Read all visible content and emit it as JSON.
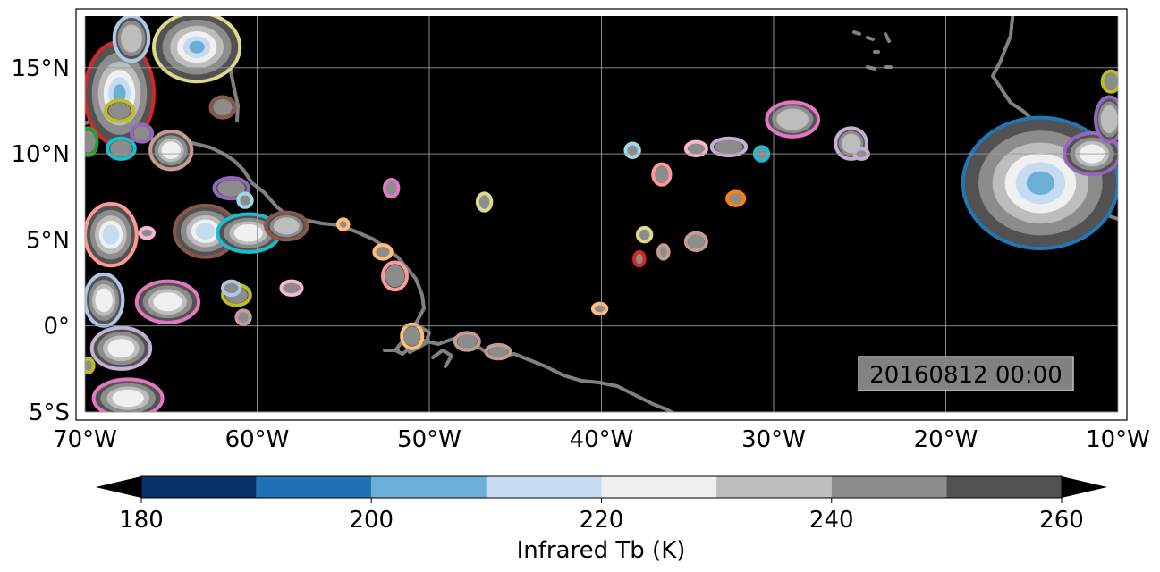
{
  "map": {
    "lon_range": [
      -70,
      -10
    ],
    "lat_range": [
      -5,
      18
    ],
    "lon_ticks": [
      {
        "lon": -70,
        "label": "70°W"
      },
      {
        "lon": -60,
        "label": "60°W"
      },
      {
        "lon": -50,
        "label": "50°W"
      },
      {
        "lon": -40,
        "label": "40°W"
      },
      {
        "lon": -30,
        "label": "30°W"
      },
      {
        "lon": -20,
        "label": "20°W"
      },
      {
        "lon": -10,
        "label": "10°W"
      }
    ],
    "lat_ticks": [
      {
        "lat": 15,
        "label": "15°N"
      },
      {
        "lat": 10,
        "label": "10°N"
      },
      {
        "lat": 5,
        "label": "5°N"
      },
      {
        "lat": 0,
        "label": "0°"
      },
      {
        "lat": -5,
        "label": "5°S"
      }
    ],
    "timestamp": "20160812 00:00",
    "background_color": "#000000",
    "coastline_color": "#808080",
    "grid": true
  },
  "colorbar": {
    "label": "Infrared Tb (K)",
    "ticks": [
      "180",
      "200",
      "220",
      "240",
      "260"
    ],
    "bins": [
      180,
      190,
      200,
      210,
      220,
      230,
      240,
      250,
      260
    ],
    "colors": [
      "#08306b",
      "#2171b5",
      "#6baed6",
      "#c6dbef",
      "#f0f0f0",
      "#bdbdbd",
      "#8c8c8c",
      "#525252"
    ],
    "extend": "both"
  },
  "storms": [
    {
      "lon": -68,
      "lat": 13.5,
      "rx": 2.0,
      "ry": 3.0,
      "edge": "#d62728"
    },
    {
      "lon": -63.5,
      "lat": 16.2,
      "rx": 2.5,
      "ry": 2.0,
      "edge": "#dbdb8d"
    },
    {
      "lon": -67.3,
      "lat": 16.7,
      "rx": 1.0,
      "ry": 1.3,
      "edge": "#aec7e8"
    },
    {
      "lon": -68.0,
      "lat": 12.5,
      "rx": 0.8,
      "ry": 0.6,
      "edge": "#bcbd22"
    },
    {
      "lon": -66.7,
      "lat": 11.2,
      "rx": 0.6,
      "ry": 0.5,
      "edge": "#9467bd"
    },
    {
      "lon": -62.0,
      "lat": 12.7,
      "rx": 0.7,
      "ry": 0.6,
      "edge": "#8c564b"
    },
    {
      "lon": -69.8,
      "lat": 10.7,
      "rx": 0.5,
      "ry": 0.8,
      "edge": "#2ca02c"
    },
    {
      "lon": -67.9,
      "lat": 10.3,
      "rx": 0.8,
      "ry": 0.6,
      "edge": "#17becf"
    },
    {
      "lon": -65.0,
      "lat": 10.2,
      "rx": 1.2,
      "ry": 1.1,
      "edge": "#c49c94"
    },
    {
      "lon": -61.5,
      "lat": 8.0,
      "rx": 1.0,
      "ry": 0.6,
      "edge": "#9467bd"
    },
    {
      "lon": -60.7,
      "lat": 7.3,
      "rx": 0.4,
      "ry": 0.4,
      "edge": "#9edae5"
    },
    {
      "lon": -68.5,
      "lat": 5.3,
      "rx": 1.5,
      "ry": 1.8,
      "edge": "#ff9896"
    },
    {
      "lon": -66.4,
      "lat": 5.4,
      "rx": 0.4,
      "ry": 0.3,
      "edge": "#f7b6d2"
    },
    {
      "lon": -63.0,
      "lat": 5.5,
      "rx": 1.8,
      "ry": 1.5,
      "edge": "#8c564b"
    },
    {
      "lon": -60.5,
      "lat": 5.4,
      "rx": 1.8,
      "ry": 1.1,
      "edge": "#17becf"
    },
    {
      "lon": -58.3,
      "lat": 5.8,
      "rx": 1.2,
      "ry": 0.8,
      "edge": "#8c564b"
    },
    {
      "lon": -68.9,
      "lat": 1.5,
      "rx": 1.1,
      "ry": 1.5,
      "edge": "#aec7e8"
    },
    {
      "lon": -65.2,
      "lat": 1.4,
      "rx": 1.8,
      "ry": 1.2,
      "edge": "#e377c2"
    },
    {
      "lon": -61.2,
      "lat": 1.8,
      "rx": 0.8,
      "ry": 0.6,
      "edge": "#bcbd22"
    },
    {
      "lon": -61.5,
      "lat": 2.2,
      "rx": 0.5,
      "ry": 0.4,
      "edge": "#aec7e8"
    },
    {
      "lon": -58.0,
      "lat": 2.2,
      "rx": 0.6,
      "ry": 0.4,
      "edge": "#f7b6d2"
    },
    {
      "lon": -60.8,
      "lat": 0.5,
      "rx": 0.4,
      "ry": 0.4,
      "edge": "#c49c94"
    },
    {
      "lon": -67.9,
      "lat": -1.3,
      "rx": 1.7,
      "ry": 1.2,
      "edge": "#c5b0d5"
    },
    {
      "lon": -67.5,
      "lat": -4.2,
      "rx": 2.0,
      "ry": 1.1,
      "edge": "#e377c2"
    },
    {
      "lon": -69.8,
      "lat": -2.3,
      "rx": 0.3,
      "ry": 0.4,
      "edge": "#bcbd22"
    },
    {
      "lon": -55.0,
      "lat": 5.9,
      "rx": 0.3,
      "ry": 0.3,
      "edge": "#ffbb78"
    },
    {
      "lon": -52.2,
      "lat": 8.0,
      "rx": 0.4,
      "ry": 0.5,
      "edge": "#e377c2"
    },
    {
      "lon": -52.0,
      "lat": 2.9,
      "rx": 0.7,
      "ry": 0.8,
      "edge": "#ff9896"
    },
    {
      "lon": -52.7,
      "lat": 4.3,
      "rx": 0.5,
      "ry": 0.4,
      "edge": "#ffbb78"
    },
    {
      "lon": -51.0,
      "lat": -0.6,
      "rx": 0.6,
      "ry": 0.7,
      "edge": "#ffbb78"
    },
    {
      "lon": -47.8,
      "lat": -0.9,
      "rx": 0.7,
      "ry": 0.5,
      "edge": "#c49c94"
    },
    {
      "lon": -46.0,
      "lat": -1.5,
      "rx": 0.7,
      "ry": 0.4,
      "edge": "#c49c94"
    },
    {
      "lon": -46.8,
      "lat": 7.2,
      "rx": 0.4,
      "ry": 0.5,
      "edge": "#dbdb8d"
    },
    {
      "lon": -40.1,
      "lat": 1.0,
      "rx": 0.4,
      "ry": 0.3,
      "edge": "#ffbb78"
    },
    {
      "lon": -38.2,
      "lat": 10.2,
      "rx": 0.4,
      "ry": 0.4,
      "edge": "#9edae5"
    },
    {
      "lon": -36.5,
      "lat": 8.8,
      "rx": 0.5,
      "ry": 0.6,
      "edge": "#ff9896"
    },
    {
      "lon": -37.5,
      "lat": 5.3,
      "rx": 0.4,
      "ry": 0.4,
      "edge": "#dbdb8d"
    },
    {
      "lon": -37.8,
      "lat": 3.9,
      "rx": 0.3,
      "ry": 0.4,
      "edge": "#d62728"
    },
    {
      "lon": -36.4,
      "lat": 4.3,
      "rx": 0.3,
      "ry": 0.4,
      "edge": "#c49c94"
    },
    {
      "lon": -34.5,
      "lat": 4.9,
      "rx": 0.6,
      "ry": 0.5,
      "edge": "#c49c94"
    },
    {
      "lon": -34.5,
      "lat": 10.3,
      "rx": 0.6,
      "ry": 0.4,
      "edge": "#f7b6d2"
    },
    {
      "lon": -32.6,
      "lat": 10.4,
      "rx": 1.0,
      "ry": 0.5,
      "edge": "#c5b0d5"
    },
    {
      "lon": -32.2,
      "lat": 7.4,
      "rx": 0.5,
      "ry": 0.4,
      "edge": "#ff7f0e"
    },
    {
      "lon": -30.7,
      "lat": 10.0,
      "rx": 0.4,
      "ry": 0.4,
      "edge": "#17becf"
    },
    {
      "lon": -28.9,
      "lat": 12.0,
      "rx": 1.5,
      "ry": 1.0,
      "edge": "#e377c2"
    },
    {
      "lon": -25.5,
      "lat": 10.6,
      "rx": 0.9,
      "ry": 0.9,
      "edge": "#c5b0d5"
    },
    {
      "lon": -24.9,
      "lat": 10.0,
      "rx": 0.4,
      "ry": 0.3,
      "edge": "#c5b0d5"
    },
    {
      "lon": -14.5,
      "lat": 8.3,
      "rx": 4.5,
      "ry": 3.8,
      "edge": "#1f77b4"
    },
    {
      "lon": -11.5,
      "lat": 10.0,
      "rx": 1.6,
      "ry": 1.2,
      "edge": "#9467bd"
    },
    {
      "lon": -10.5,
      "lat": 12.0,
      "rx": 0.8,
      "ry": 1.3,
      "edge": "#9467bd"
    },
    {
      "lon": -10.4,
      "lat": 14.2,
      "rx": 0.5,
      "ry": 0.6,
      "edge": "#bcbd22"
    }
  ]
}
